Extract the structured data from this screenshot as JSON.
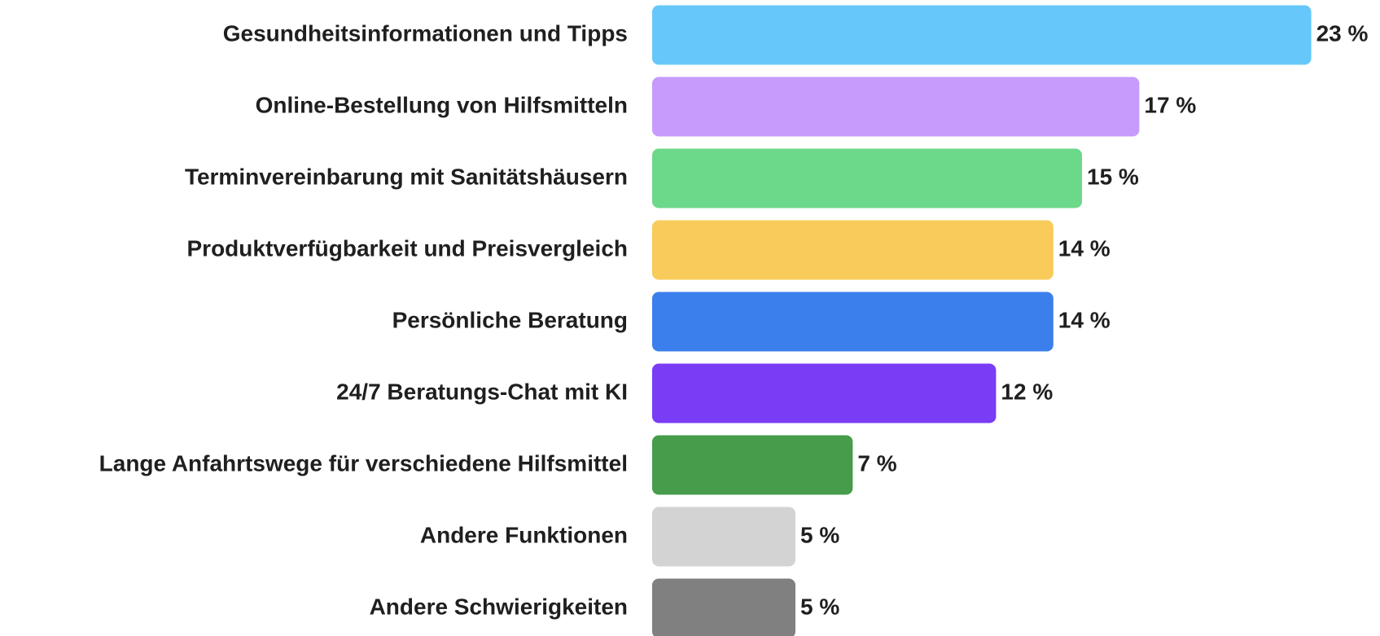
{
  "chart_data": {
    "type": "bar",
    "orientation": "horizontal",
    "categories": [
      "Gesundheitsinformationen und Tipps",
      "Online-Bestellung von Hilfsmitteln",
      "Terminvereinbarung mit Sanitätshäusern",
      "Produktverfügbarkeit und Preisvergleich",
      "Persönliche Beratung",
      "24/7 Beratungs-Chat mit KI",
      "Lange Anfahrtswege für verschiedene Hilfsmittel",
      "Andere Funktionen",
      "Andere Schwierigkeiten"
    ],
    "values": [
      23,
      17,
      15,
      14,
      14,
      12,
      7,
      5,
      5
    ],
    "value_labels": [
      "23 %",
      "17 %",
      "15 %",
      "14 %",
      "14 %",
      "12 %",
      "7 %",
      "5 %",
      "5 %"
    ],
    "colors": [
      "#66c8fa",
      "#c69bfb",
      "#6cd88a",
      "#f8cb5a",
      "#3a7fec",
      "#7a3cf5",
      "#469c4a",
      "#d3d3d3",
      "#808080"
    ]
  }
}
